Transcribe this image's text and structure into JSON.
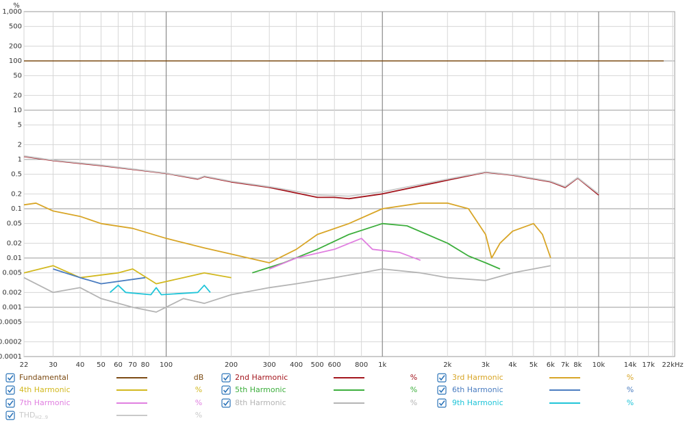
{
  "chart_data": {
    "type": "line",
    "log_x": true,
    "log_y": true,
    "grid": true,
    "y_label": "%",
    "xlim": [
      22,
      22000
    ],
    "ylim": [
      0.0001,
      1000
    ],
    "xticks": [
      22,
      30,
      40,
      50,
      60,
      70,
      80,
      100,
      200,
      300,
      400,
      500,
      600,
      800,
      {
        "value": 1000,
        "label": "1k"
      },
      {
        "value": 2000,
        "label": "2k"
      },
      {
        "value": 3000,
        "label": "3k"
      },
      {
        "value": 4000,
        "label": "4k"
      },
      {
        "value": 5000,
        "label": "5k"
      },
      {
        "value": 6000,
        "label": "6k"
      },
      {
        "value": 7000,
        "label": "7k"
      },
      {
        "value": 8000,
        "label": "8k"
      },
      {
        "value": 10000,
        "label": "10k"
      },
      {
        "value": 14000,
        "label": "14k"
      },
      {
        "value": 17000,
        "label": "17k"
      },
      {
        "value": 22000,
        "label": "22kHz"
      }
    ],
    "yticks": [
      {
        "value": 1000,
        "label": "1,000"
      },
      500,
      200,
      100,
      50,
      20,
      10,
      5,
      2,
      1,
      0.5,
      0.2,
      0.1,
      0.05,
      0.02,
      0.01,
      0.005,
      0.002,
      0.001,
      0.0005,
      0.0002,
      0.0001
    ],
    "series": [
      {
        "name": "Fundamental",
        "unit": "dB",
        "color": "#7b4a12",
        "x": [
          22,
          20000
        ],
        "values": [
          100,
          100
        ]
      },
      {
        "name": "2nd Harmonic",
        "unit": "%",
        "color": "#a3141c",
        "x": [
          22,
          30,
          50,
          100,
          140,
          150,
          200,
          300,
          500,
          600,
          700,
          1000,
          2000,
          3000,
          4000,
          6000,
          7000,
          8000,
          10000
        ],
        "values": [
          1.15,
          0.95,
          0.75,
          0.52,
          0.4,
          0.45,
          0.35,
          0.27,
          0.17,
          0.17,
          0.16,
          0.2,
          0.38,
          0.55,
          0.48,
          0.35,
          0.27,
          0.42,
          0.19
        ]
      },
      {
        "name": "3rd Harmonic",
        "unit": "%",
        "color": "#d8a526",
        "x": [
          22,
          25,
          30,
          40,
          50,
          70,
          100,
          150,
          200,
          300,
          400,
          500,
          700,
          1000,
          1500,
          2000,
          2500,
          3000,
          3200,
          3500,
          4000,
          5000,
          5500,
          6000
        ],
        "values": [
          0.12,
          0.13,
          0.09,
          0.07,
          0.05,
          0.04,
          0.025,
          0.016,
          0.012,
          0.008,
          0.015,
          0.03,
          0.05,
          0.1,
          0.13,
          0.13,
          0.1,
          0.03,
          0.01,
          0.02,
          0.035,
          0.05,
          0.03,
          0.01
        ]
      },
      {
        "name": "4th Harmonic",
        "unit": "%",
        "color": "#d2b81e",
        "x": [
          22,
          30,
          40,
          60,
          70,
          90,
          120,
          150,
          200
        ],
        "values": [
          0.005,
          0.007,
          0.004,
          0.005,
          0.006,
          0.003,
          0.004,
          0.005,
          0.004
        ]
      },
      {
        "name": "5th Harmonic",
        "unit": "%",
        "color": "#3cae3c",
        "x": [
          250,
          350,
          500,
          700,
          1000,
          1300,
          2000,
          2500,
          3000,
          3500
        ],
        "values": [
          0.005,
          0.008,
          0.015,
          0.03,
          0.05,
          0.045,
          0.02,
          0.011,
          0.008,
          0.006
        ]
      },
      {
        "name": "6th Harmonic",
        "unit": "%",
        "color": "#4a7cc0",
        "x": [
          30,
          40,
          50,
          80
        ],
        "values": [
          0.006,
          0.004,
          0.003,
          0.004
        ]
      },
      {
        "name": "7th Harmonic",
        "unit": "%",
        "color": "#e07fe0",
        "x": [
          300,
          400,
          600,
          800,
          900,
          1200,
          1500
        ],
        "values": [
          0.006,
          0.01,
          0.015,
          0.025,
          0.015,
          0.013,
          0.009
        ]
      },
      {
        "name": "8th Harmonic",
        "unit": "%",
        "color": "#b4b4b4",
        "x": [
          22,
          30,
          40,
          50,
          70,
          90,
          120,
          150,
          200,
          300,
          400,
          600,
          800,
          1000,
          1500,
          2000,
          3000,
          4000,
          6000
        ],
        "values": [
          0.004,
          0.002,
          0.0025,
          0.0015,
          0.001,
          0.0008,
          0.0015,
          0.0012,
          0.0018,
          0.0025,
          0.003,
          0.004,
          0.005,
          0.006,
          0.005,
          0.004,
          0.0035,
          0.005,
          0.007
        ]
      },
      {
        "name": "9th Harmonic",
        "unit": "%",
        "color": "#1fc4d8",
        "x": [
          55,
          60,
          65,
          85,
          90,
          95,
          140,
          150,
          160
        ],
        "values": [
          0.002,
          0.0028,
          0.002,
          0.0018,
          0.0025,
          0.0018,
          0.002,
          0.0028,
          0.002
        ]
      },
      {
        "name": "THD",
        "name_sub": "H2..9",
        "unit": "%",
        "color": "#c9c9c9",
        "x": [
          22,
          30,
          50,
          100,
          140,
          150,
          200,
          300,
          500,
          700,
          1000,
          2000,
          3000,
          4000,
          6000,
          7000,
          8000,
          10000
        ],
        "values": [
          1.18,
          0.97,
          0.77,
          0.53,
          0.41,
          0.46,
          0.36,
          0.28,
          0.19,
          0.18,
          0.22,
          0.4,
          0.56,
          0.49,
          0.36,
          0.28,
          0.43,
          0.2
        ]
      }
    ]
  }
}
